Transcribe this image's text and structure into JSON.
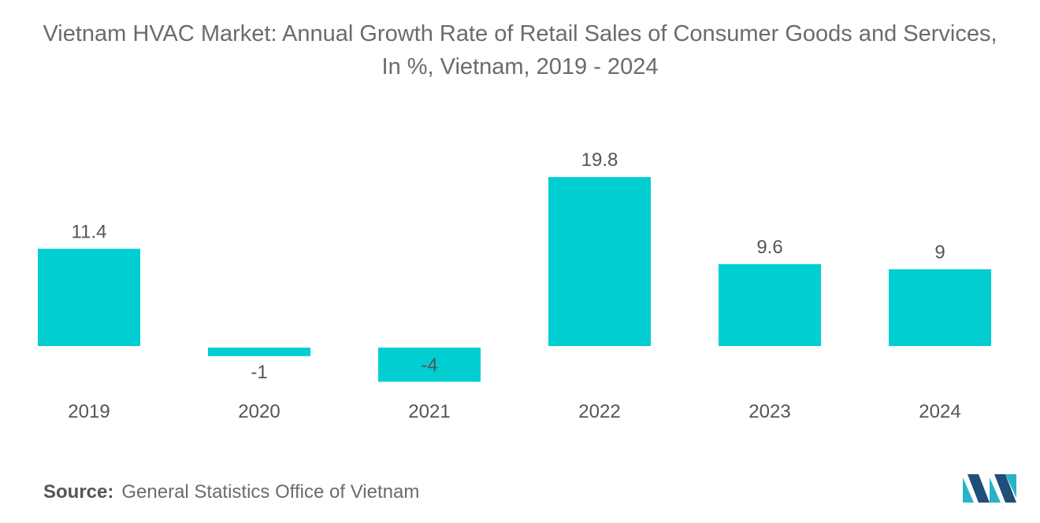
{
  "title": "Vietnam HVAC Market: Annual Growth Rate of Retail Sales of Consumer Goods and Services, In %, Vietnam, 2019 - 2024",
  "source": {
    "label": "Source:",
    "text": "General Statistics Office of Vietnam"
  },
  "colors": {
    "bar": "#00CED1",
    "text": "#555555",
    "logo_dark": "#1f4e79",
    "logo_light": "#2ab3c6"
  },
  "chart_data": {
    "type": "bar",
    "title": "Vietnam HVAC Market: Annual Growth Rate of Retail Sales of Consumer Goods and Services, In %, Vietnam, 2019 - 2024",
    "categories": [
      "2019",
      "2020",
      "2021",
      "2022",
      "2023",
      "2024"
    ],
    "values": [
      11.4,
      -1,
      -4,
      19.8,
      9.6,
      9
    ],
    "value_labels": [
      "11.4",
      "-1",
      "-4",
      "19.8",
      "9.6",
      "9"
    ],
    "xlabel": "",
    "ylabel": "",
    "ylim": [
      -4,
      19.8
    ],
    "grid": false,
    "legend": "none"
  }
}
